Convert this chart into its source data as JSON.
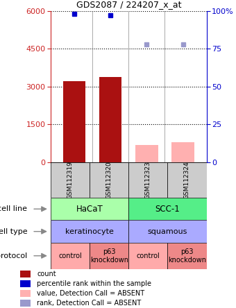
{
  "title": "GDS2087 / 224207_x_at",
  "samples": [
    "GSM112319",
    "GSM112320",
    "GSM112323",
    "GSM112324"
  ],
  "bar_values": [
    3200,
    3380,
    700,
    790
  ],
  "bar_present": [
    true,
    true,
    false,
    false
  ],
  "percentile_values": [
    98,
    97,
    78,
    78
  ],
  "percentile_present": [
    true,
    true,
    false,
    false
  ],
  "bar_color_present": "#aa1111",
  "bar_color_absent": "#ffb0b0",
  "percentile_color_present": "#0000cc",
  "percentile_color_absent": "#9999cc",
  "ylim_left": [
    0,
    6000
  ],
  "ylim_right": [
    0,
    100
  ],
  "yticks_left": [
    0,
    1500,
    3000,
    4500,
    6000
  ],
  "yticks_right": [
    0,
    25,
    50,
    75,
    100
  ],
  "yticklabels_right": [
    "0",
    "25",
    "50",
    "75",
    "100%"
  ],
  "cell_line_items": [
    {
      "label": "HaCaT",
      "span": [
        0,
        2
      ],
      "color": "#aaffaa"
    },
    {
      "label": "SCC-1",
      "span": [
        2,
        4
      ],
      "color": "#55ee88"
    }
  ],
  "cell_type_items": [
    {
      "label": "keratinocyte",
      "span": [
        0,
        2
      ],
      "color": "#aaaaff"
    },
    {
      "label": "squamous",
      "span": [
        2,
        4
      ],
      "color": "#aaaaff"
    }
  ],
  "protocol_items": [
    {
      "label": "control",
      "span": [
        0,
        1
      ],
      "color": "#ffaaaa"
    },
    {
      "label": "p63\nknockdown",
      "span": [
        1,
        2
      ],
      "color": "#ee8888"
    },
    {
      "label": "control",
      "span": [
        2,
        3
      ],
      "color": "#ffaaaa"
    },
    {
      "label": "p63\nknockdown",
      "span": [
        3,
        4
      ],
      "color": "#ee8888"
    }
  ],
  "row_labels": [
    "cell line",
    "cell type",
    "protocol"
  ],
  "legend_items": [
    {
      "color": "#aa1111",
      "label": "count"
    },
    {
      "color": "#0000cc",
      "label": "percentile rank within the sample"
    },
    {
      "color": "#ffb0b0",
      "label": "value, Detection Call = ABSENT"
    },
    {
      "color": "#9999cc",
      "label": "rank, Detection Call = ABSENT"
    }
  ],
  "axis_left_color": "#cc2222",
  "axis_right_color": "#0000cc",
  "sample_box_color": "#cccccc",
  "bar_width": 0.62
}
